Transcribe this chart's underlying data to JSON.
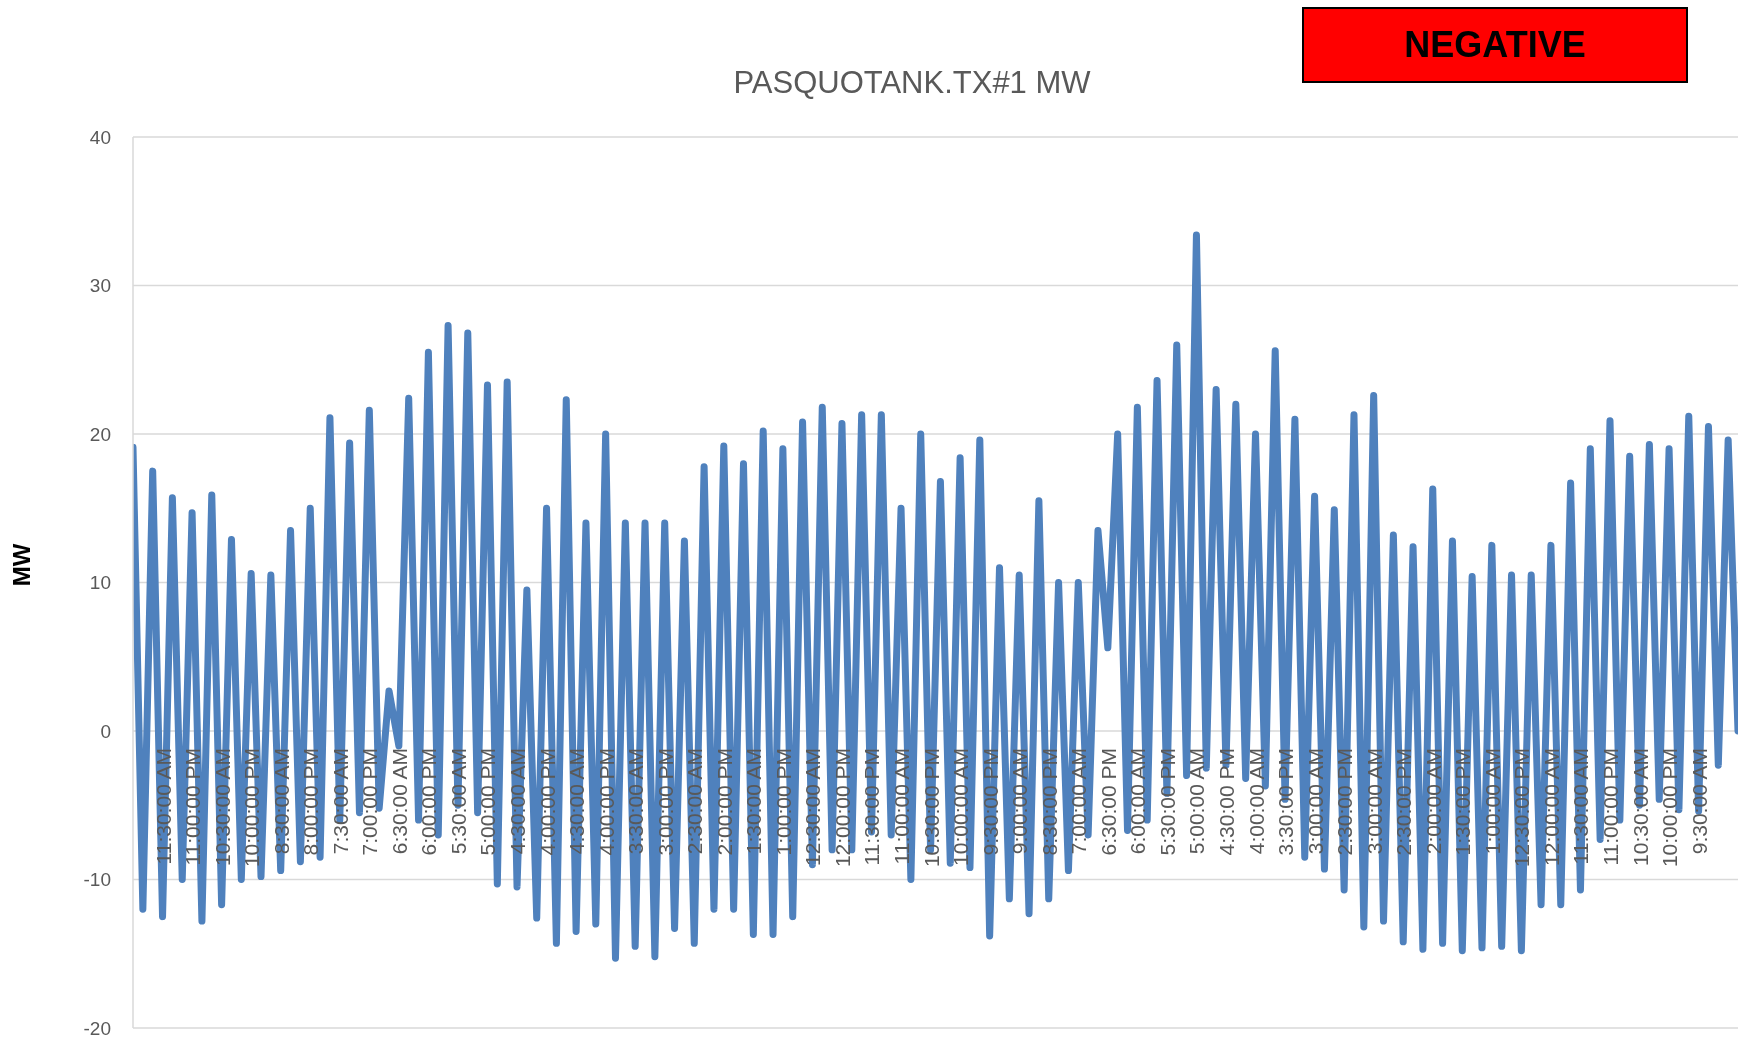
{
  "chart_data": {
    "type": "line",
    "title": "PASQUOTANK.TX#1 MW",
    "ylabel": "MW",
    "annotations": [
      "NEGATIVE"
    ],
    "categories": [
      null,
      null,
      null,
      "11:30:00 AM",
      null,
      null,
      "11:00:00 PM",
      null,
      null,
      "10:30:00 AM",
      null,
      null,
      "10:00:00 PM",
      null,
      null,
      "8:30:00 AM",
      null,
      null,
      "8:00:00 PM",
      null,
      null,
      "7:30:00 AM",
      null,
      null,
      "7:00:00 PM",
      null,
      null,
      "6:30:00 AM",
      null,
      null,
      "6:00:00 PM",
      null,
      null,
      "5:30:00 AM",
      null,
      null,
      "5:00:00 PM",
      null,
      null,
      "4:30:00 AM",
      null,
      null,
      "4:00:00 PM",
      null,
      null,
      "4:30:00 AM",
      null,
      null,
      "4:00:00 PM",
      null,
      null,
      "3:30:00 AM",
      null,
      null,
      "3:00:00 PM",
      null,
      null,
      "2:30:00 AM",
      null,
      null,
      "2:00:00 PM",
      null,
      null,
      "1:30:00 AM",
      null,
      null,
      "1:00:00 PM",
      null,
      null,
      "12:30:00 AM",
      null,
      null,
      "12:00:00 PM",
      null,
      null,
      "11:30:00 PM",
      null,
      null,
      "11:00:00 AM",
      null,
      null,
      "10:30:00 PM",
      null,
      null,
      "10:00:00 AM",
      null,
      null,
      "9:30:00 PM",
      null,
      null,
      "9:00:00 AM",
      null,
      null,
      "8:30:00 PM",
      null,
      null,
      "7:00:00 AM",
      null,
      null,
      "6:30:00 PM",
      null,
      null,
      "6:00:00 AM",
      null,
      null,
      "5:30:00 PM",
      null,
      null,
      "5:00:00 AM",
      null,
      null,
      "4:30:00 PM",
      null,
      null,
      "4:00:00 AM",
      null,
      null,
      "3:30:00 PM",
      null,
      null,
      "3:00:00 AM",
      null,
      null,
      "2:30:00 PM",
      null,
      null,
      "3:00:00 AM",
      null,
      null,
      "2:30:00 PM",
      null,
      null,
      "2:00:00 AM",
      null,
      null,
      "1:30:00 PM",
      null,
      null,
      "1:00:00 AM",
      null,
      null,
      "12:30:00 PM",
      null,
      null,
      "12:00:00 AM",
      null,
      null,
      "11:30:00 AM",
      null,
      null,
      "11:00:00 PM",
      null,
      null,
      "10:30:00 AM",
      null,
      null,
      "10:00:00 PM",
      null,
      null,
      "9:30:00 AM",
      null,
      null,
      null,
      null
    ],
    "color": "#4f81bd",
    "values": [
      19.1,
      -12,
      17.5,
      -12.5,
      15.7,
      -10,
      14.7,
      -12.8,
      15.9,
      -11.7,
      12.9,
      -10,
      10.6,
      -9.8,
      10.5,
      -9.4,
      13.5,
      -8.8,
      15,
      -8.5,
      21.1,
      -6,
      19.4,
      -5.5,
      21.6,
      -5.2,
      2.7,
      -1,
      22.4,
      -6,
      25.5,
      -7,
      27.3,
      -5,
      26.8,
      -5.5,
      23.3,
      -10.3,
      23.5,
      -10.5,
      9.5,
      -12.6,
      15,
      -14.3,
      22.3,
      -13.5,
      14,
      -13,
      20,
      -15.3,
      14,
      -14.5,
      14,
      -15.2,
      14,
      -13.3,
      12.8,
      -14.3,
      17.8,
      -12,
      19.2,
      -12,
      18,
      -13.7,
      20.2,
      -13.7,
      19,
      -12.5,
      20.8,
      -9,
      21.8,
      -8,
      20.7,
      -8,
      21.3,
      -6.8,
      21.3,
      -7,
      15,
      -10,
      20,
      -8,
      16.8,
      -8.9,
      18.4,
      -9.2,
      19.6,
      -13.8,
      11,
      -11.3,
      10.5,
      -12.3,
      15.5,
      -11.3,
      10,
      -9.4,
      10,
      -7,
      13.5,
      5.6,
      20,
      -6.7,
      21.8,
      -6,
      23.6,
      -4.2,
      26,
      -3,
      33.4,
      -2.5,
      23,
      -2.3,
      22,
      -3.2,
      20,
      -3.7,
      25.6,
      -4.6,
      21,
      -8.5,
      15.8,
      -9.3,
      14.9,
      -10.7,
      21.3,
      -13.2,
      22.6,
      -12.8,
      13.2,
      -14.2,
      12.4,
      -14.7,
      16.3,
      -14.3,
      12.8,
      -14.8,
      10.4,
      -14.6,
      12.5,
      -14.5,
      10.5,
      -14.8,
      10.5,
      -11.7,
      12.5,
      -11.7,
      16.7,
      -10.7,
      19,
      -7.3,
      20.9,
      -6,
      18.5,
      -5,
      19.3,
      -4.6,
      19,
      -5.3,
      21.2,
      -5.4,
      20.5,
      -2.3,
      19.6,
      0
    ],
    "ylim": [
      -20,
      40
    ],
    "yticks": [
      -20,
      -10,
      0,
      10,
      20,
      30,
      40
    ],
    "grid": "y"
  }
}
